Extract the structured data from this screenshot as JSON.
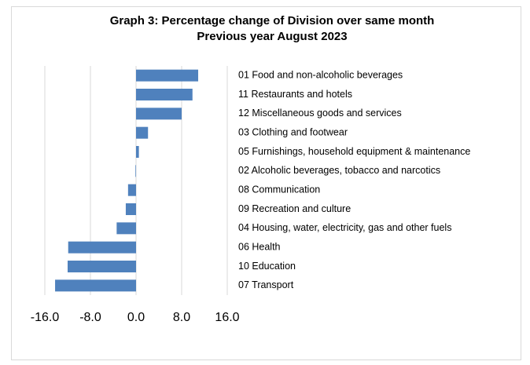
{
  "chart_data": {
    "type": "hbar",
    "title": [
      "Graph 3: Percentage change of Division over same month",
      "Previous year August 2023"
    ],
    "categories": [
      "01 Food and non-alcoholic beverages",
      "11 Restaurants and hotels",
      "12 Miscellaneous goods and services",
      "03 Clothing and footwear",
      "05 Furnishings, household equipment & maintenance",
      "02 Alcoholic beverages, tobacco and narcotics",
      "08 Communication",
      "09 Recreation and culture",
      "04 Housing, water, electricity, gas and other fuels",
      "06 Health",
      "10 Education",
      "07 Transport"
    ],
    "values": [
      10.9,
      9.9,
      8.0,
      2.1,
      0.5,
      -0.1,
      -1.4,
      -1.8,
      -3.4,
      -11.9,
      -12.0,
      -14.2
    ],
    "color": "#4f81bd",
    "xlim": [
      -16,
      16
    ],
    "xticks": [
      {
        "value": -16,
        "label": "-16.0"
      },
      {
        "value": -8,
        "label": "-8.0"
      },
      {
        "value": 0,
        "label": "0.0"
      },
      {
        "value": 8,
        "label": "8.0"
      },
      {
        "value": 16,
        "label": "16.0"
      }
    ],
    "grid": true
  }
}
